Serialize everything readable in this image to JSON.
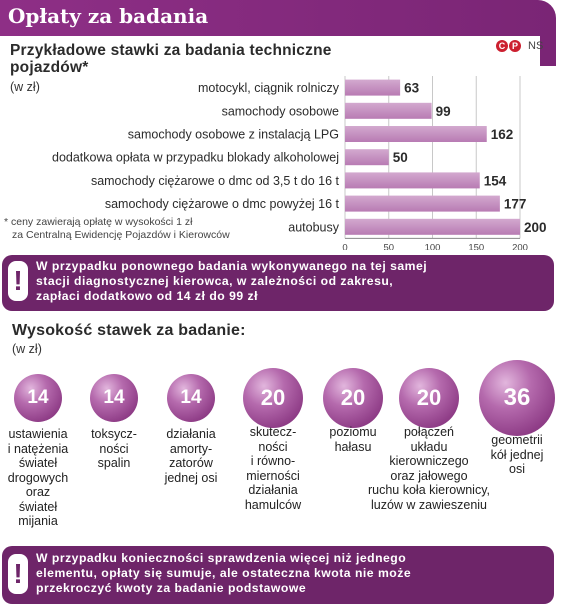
{
  "header": {
    "title": "Opłaty za badania"
  },
  "logo": {
    "c": "C",
    "p": "P",
    "ns": "NS"
  },
  "chart_section": {
    "title_line1": "Przykładowe stawki za badania techniczne",
    "title_line2": "pojazdów*",
    "unit": "(w zł)",
    "footnote_line1": "* ceny zawierają opłatę w wysokości 1 zł",
    "footnote_line2": "za Centralną Ewidencję Pojazdów i Kierowców"
  },
  "chart_data": {
    "type": "bar",
    "orientation": "horizontal",
    "categories": [
      "motocykl, ciągnik rolniczy",
      "samochody osobowe",
      "samochody osobowe z instalacją LPG",
      "dodatkowa opłata w przypadku blokady alkoholowej",
      "samochody ciężarowe o dmc od 3,5 t do 16 t",
      "samochody ciężarowe o dmc powyżej 16 t",
      "autobusy"
    ],
    "values": [
      63,
      99,
      162,
      50,
      154,
      177,
      200
    ],
    "xlim": [
      0,
      200
    ],
    "ticks": [
      0,
      50,
      100,
      150,
      200
    ],
    "unit": "zł",
    "grid": true,
    "bar_color": "#b87bb3"
  },
  "note1": {
    "icon": "!",
    "line1": "W przypadku ponownego badania wykonywanego na tej samej",
    "line2": "stacji diagnostycznej kierowca, w zależności od zakresu,",
    "line3": "zapłaci dodatkowo od 14 zł do 99 zł"
  },
  "fees_section": {
    "title": "Wysokość stawek za badanie:",
    "unit": "(w zł)",
    "items": [
      {
        "value": "14",
        "label": [
          "ustawienia",
          "i natężenia",
          "świateł",
          "drogowych",
          "oraz",
          "świateł",
          "mijania"
        ]
      },
      {
        "value": "14",
        "label": [
          "toksycz-",
          "ności",
          "spalin"
        ]
      },
      {
        "value": "14",
        "label": [
          "działania",
          "amorty-",
          "zatorów",
          "jednej osi"
        ]
      },
      {
        "value": "20",
        "label": [
          "skutecz-",
          "ności",
          "i równo-",
          "mierności",
          "działania",
          "hamulców"
        ]
      },
      {
        "value": "20",
        "label": [
          "poziomu",
          "hałasu"
        ]
      },
      {
        "value": "20",
        "label": [
          "połączeń",
          "układu",
          "kierowniczego",
          "oraz jałowego",
          "ruchu koła kierownicy,",
          "luzów w zawieszeniu"
        ]
      },
      {
        "value": "36",
        "label": [
          "geometrii",
          "kół jednej",
          "osi"
        ]
      }
    ]
  },
  "note2": {
    "icon": "!",
    "line1": "W przypadku konieczności sprawdzenia więcej niż jednego",
    "line2": "elementu, opłaty się sumuje, ale ostateczna kwota nie może",
    "line3": "przekroczyć kwoty za badanie podstawowe"
  }
}
